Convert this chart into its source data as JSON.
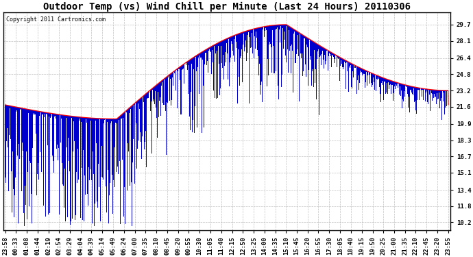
{
  "title": "Outdoor Temp (vs) Wind Chill per Minute (Last 24 Hours) 20110306",
  "copyright_text": "Copyright 2011 Cartronics.com",
  "y_ticks": [
    10.2,
    11.8,
    13.4,
    15.1,
    16.7,
    18.3,
    19.9,
    21.6,
    23.2,
    24.8,
    26.4,
    28.1,
    29.7
  ],
  "y_min": 9.4,
  "y_max": 30.9,
  "background_color": "#ffffff",
  "plot_bg_color": "#ffffff",
  "grid_color": "#b0b0b0",
  "bar_color": "#0000cc",
  "line_color": "#ff0000",
  "n_bars": 1440,
  "title_fontsize": 10,
  "tick_fontsize": 6.5,
  "copyright_fontsize": 6
}
